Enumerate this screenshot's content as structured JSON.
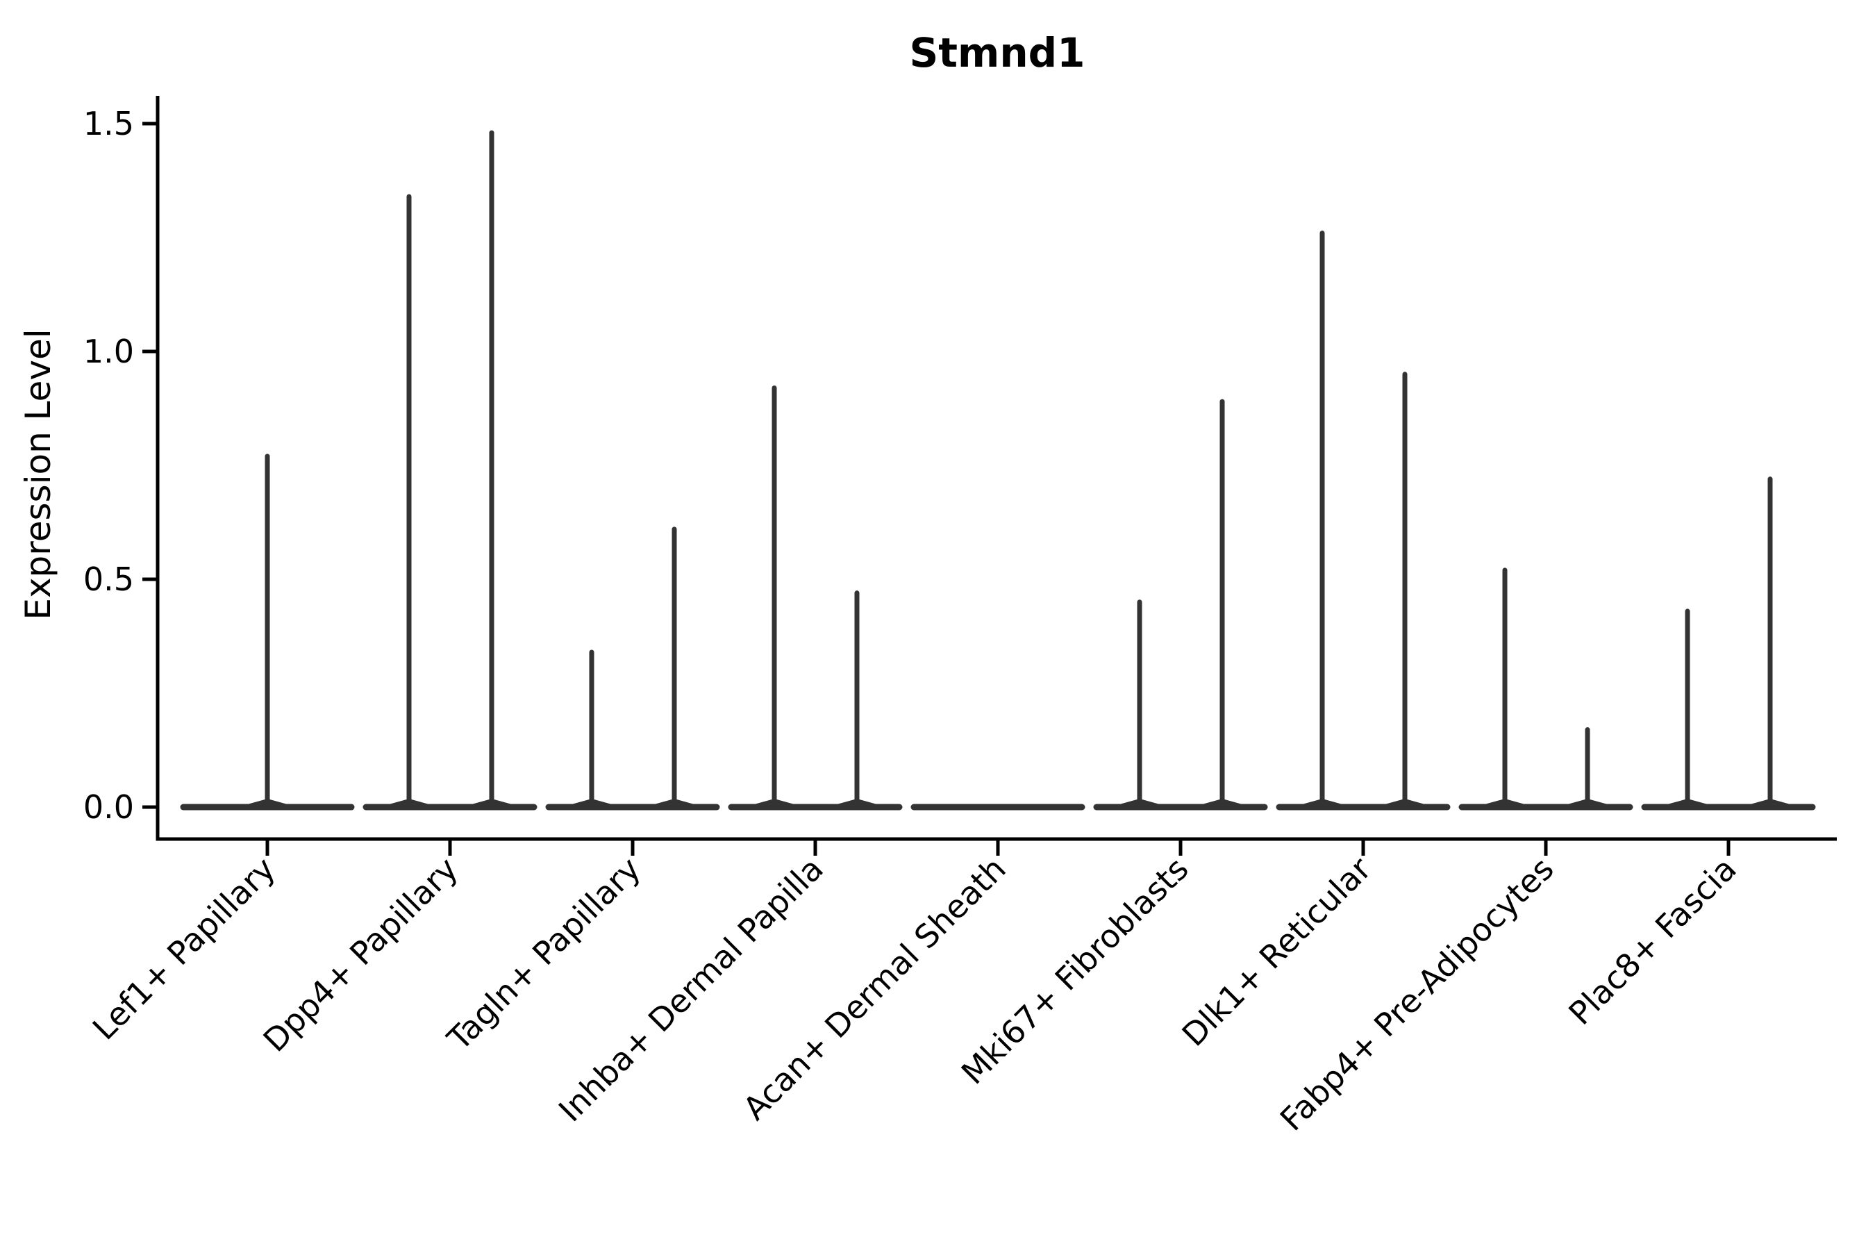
{
  "figure": {
    "title": "Stmnd1",
    "ylabel": "Expression Level",
    "xlabel": ""
  },
  "colors": {
    "violin": "#333333",
    "axis": "#000000",
    "text": "#000000",
    "background": "#ffffff"
  },
  "chart_data": {
    "type": "violin",
    "title": "Stmnd1",
    "xlabel": "",
    "ylabel": "Expression Level",
    "ylim": [
      0,
      1.57
    ],
    "yticks": [
      0.0,
      0.5,
      1.0,
      1.5
    ],
    "ytick_labels": [
      "0.0",
      "0.5",
      "1.0",
      "1.5"
    ],
    "grid": false,
    "legend": null,
    "categories": [
      "Lef1+ Papillary",
      "Dpp4+ Papillary",
      "Tagln+ Papillary",
      "Inhba+ Dermal Papilla",
      "Acan+ Dermal Sheath",
      "Mki67+ Fibroblasts",
      "Dlk1+ Reticular",
      "Fabp4+ Pre-Adipocytes",
      "Plac8+ Fascia"
    ],
    "violins": [
      {
        "category": "Lef1+ Papillary",
        "baseline_value": 0,
        "spikes": [
          {
            "side": "center",
            "peak_expression": 0.77
          }
        ]
      },
      {
        "category": "Dpp4+ Papillary",
        "baseline_value": 0,
        "spikes": [
          {
            "side": "left",
            "peak_expression": 1.34
          },
          {
            "side": "right",
            "peak_expression": 1.48
          }
        ]
      },
      {
        "category": "Tagln+ Papillary",
        "baseline_value": 0,
        "spikes": [
          {
            "side": "left",
            "peak_expression": 0.34
          },
          {
            "side": "right",
            "peak_expression": 0.61
          }
        ]
      },
      {
        "category": "Inhba+ Dermal Papilla",
        "baseline_value": 0,
        "spikes": [
          {
            "side": "left",
            "peak_expression": 0.92
          },
          {
            "side": "right",
            "peak_expression": 0.47
          }
        ]
      },
      {
        "category": "Acan+ Dermal Sheath",
        "baseline_value": 0,
        "spikes": []
      },
      {
        "category": "Mki67+ Fibroblasts",
        "baseline_value": 0,
        "spikes": [
          {
            "side": "left",
            "peak_expression": 0.45
          },
          {
            "side": "right",
            "peak_expression": 0.89
          }
        ]
      },
      {
        "category": "Dlk1+ Reticular",
        "baseline_value": 0,
        "spikes": [
          {
            "side": "left",
            "peak_expression": 1.26
          },
          {
            "side": "right",
            "peak_expression": 0.95
          }
        ]
      },
      {
        "category": "Fabp4+ Pre-Adipocytes",
        "baseline_value": 0,
        "spikes": [
          {
            "side": "left",
            "peak_expression": 0.52
          },
          {
            "side": "right",
            "peak_expression": 0.17
          }
        ]
      },
      {
        "category": "Plac8+ Fascia",
        "baseline_value": 0,
        "spikes": [
          {
            "side": "left",
            "peak_expression": 0.43
          },
          {
            "side": "right",
            "peak_expression": 0.72
          }
        ]
      }
    ]
  }
}
